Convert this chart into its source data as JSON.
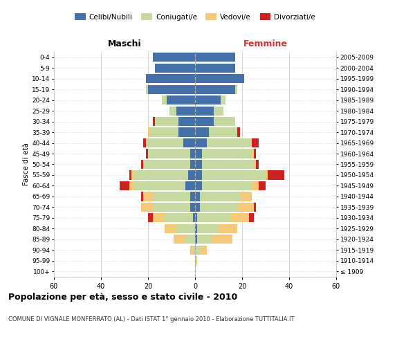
{
  "age_groups": [
    "100+",
    "95-99",
    "90-94",
    "85-89",
    "80-84",
    "75-79",
    "70-74",
    "65-69",
    "60-64",
    "55-59",
    "50-54",
    "45-49",
    "40-44",
    "35-39",
    "30-34",
    "25-29",
    "20-24",
    "15-19",
    "10-14",
    "5-9",
    "0-4"
  ],
  "birth_years": [
    "≤ 1909",
    "1910-1914",
    "1915-1919",
    "1920-1924",
    "1925-1929",
    "1930-1934",
    "1935-1939",
    "1940-1944",
    "1945-1949",
    "1950-1954",
    "1955-1959",
    "1960-1964",
    "1965-1969",
    "1970-1974",
    "1975-1979",
    "1980-1984",
    "1985-1989",
    "1990-1994",
    "1995-1999",
    "2000-2004",
    "2005-2009"
  ],
  "colors": {
    "celibi": "#4472a8",
    "coniugati": "#c5d9a0",
    "vedovi": "#f5c97a",
    "divorziati": "#cc2222"
  },
  "maschi": {
    "celibi": [
      0,
      0,
      0,
      0,
      0,
      1,
      2,
      2,
      4,
      3,
      2,
      2,
      5,
      7,
      7,
      8,
      12,
      20,
      21,
      17,
      18
    ],
    "coniugati": [
      0,
      0,
      1,
      4,
      8,
      12,
      16,
      16,
      22,
      23,
      20,
      18,
      16,
      12,
      10,
      3,
      2,
      1,
      0,
      0,
      0
    ],
    "vedovi": [
      0,
      0,
      1,
      5,
      5,
      5,
      5,
      4,
      2,
      1,
      0,
      0,
      0,
      1,
      0,
      0,
      0,
      0,
      0,
      0,
      0
    ],
    "divorziati": [
      0,
      0,
      0,
      0,
      0,
      2,
      0,
      1,
      4,
      1,
      1,
      1,
      1,
      0,
      1,
      0,
      0,
      0,
      0,
      0,
      0
    ]
  },
  "femmine": {
    "nubili": [
      0,
      0,
      0,
      1,
      1,
      1,
      2,
      2,
      3,
      3,
      3,
      3,
      5,
      6,
      8,
      8,
      11,
      17,
      21,
      17,
      17
    ],
    "coniugate": [
      0,
      0,
      2,
      6,
      9,
      14,
      16,
      17,
      21,
      27,
      22,
      21,
      19,
      12,
      9,
      4,
      2,
      1,
      0,
      0,
      0
    ],
    "vedove": [
      0,
      1,
      3,
      9,
      8,
      8,
      7,
      5,
      3,
      1,
      1,
      1,
      0,
      0,
      0,
      0,
      0,
      0,
      0,
      0,
      0
    ],
    "divorziate": [
      0,
      0,
      0,
      0,
      0,
      2,
      1,
      0,
      3,
      7,
      1,
      1,
      3,
      1,
      0,
      0,
      0,
      0,
      0,
      0,
      0
    ]
  },
  "xlim": 60,
  "title": "Popolazione per età, sesso e stato civile - 2010",
  "subtitle": "COMUNE DI VIGNALE MONFERRATO (AL) - Dati ISTAT 1° gennaio 2010 - Elaborazione TUTTITALIA.IT",
  "ylabel_left": "Fasce di età",
  "xlabel_left": "Maschi",
  "xlabel_right": "Femmine",
  "legend_labels": [
    "Celibi/Nubili",
    "Coniugati/e",
    "Vedovi/e",
    "Divorziati/e"
  ],
  "background_color": "#ffffff",
  "grid_color": "#cccccc"
}
